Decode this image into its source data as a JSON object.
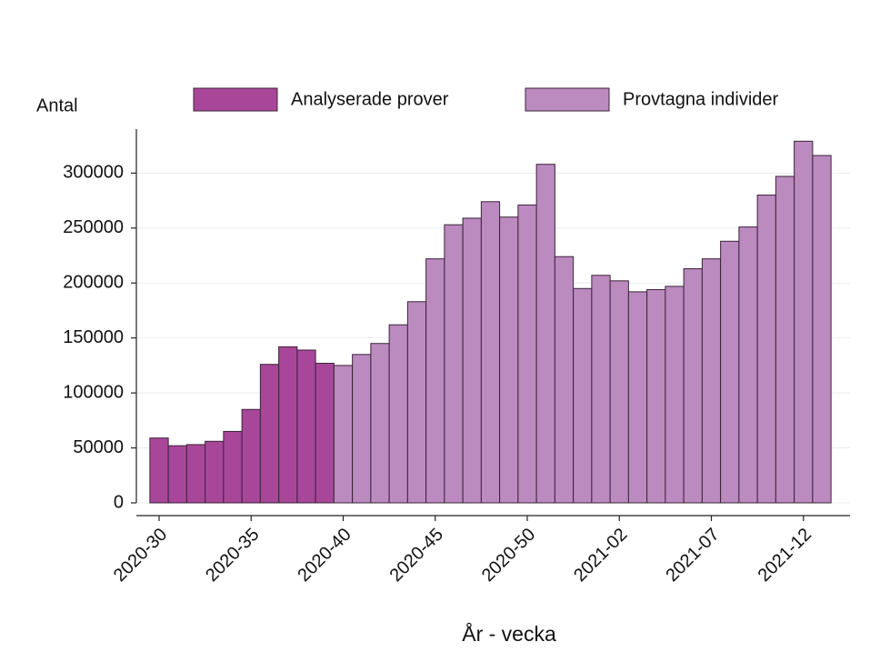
{
  "chart_data": {
    "type": "bar",
    "ylabel": "Antal",
    "xlabel": "År - vecka",
    "categories": [
      "2020-30",
      null,
      null,
      null,
      null,
      "2020-35",
      null,
      null,
      null,
      null,
      "2020-40",
      null,
      null,
      null,
      null,
      "2020-45",
      null,
      null,
      null,
      null,
      "2020-50",
      null,
      null,
      null,
      null,
      "2021-02",
      null,
      null,
      null,
      null,
      "2021-07",
      null,
      null,
      null,
      null,
      "2021-12",
      null
    ],
    "series": [
      {
        "name": "Analyserade prover",
        "color": "#a8479a",
        "values": [
          59000,
          52000,
          53000,
          56000,
          65000,
          85000,
          126000,
          142000,
          139000,
          127000,
          null,
          null,
          null,
          null,
          null,
          null,
          null,
          null,
          null,
          null,
          null,
          null,
          null,
          null,
          null,
          null,
          null,
          null,
          null,
          null,
          null,
          null,
          null,
          null,
          null,
          null,
          null
        ]
      },
      {
        "name": "Provtagna individer",
        "color": "#bb8abf",
        "values": [
          null,
          null,
          null,
          null,
          null,
          null,
          null,
          null,
          null,
          null,
          125000,
          135000,
          145000,
          162000,
          183000,
          222000,
          253000,
          259000,
          274000,
          260000,
          271000,
          308000,
          224000,
          195000,
          207000,
          202000,
          192000,
          194000,
          197000,
          213000,
          222000,
          238000,
          251000,
          280000,
          297000,
          329000,
          316000
        ]
      }
    ],
    "ylim": [
      0,
      340000
    ],
    "yticks": [
      0,
      50000,
      100000,
      150000,
      200000,
      250000,
      300000
    ],
    "grid": true,
    "legend": "top"
  }
}
